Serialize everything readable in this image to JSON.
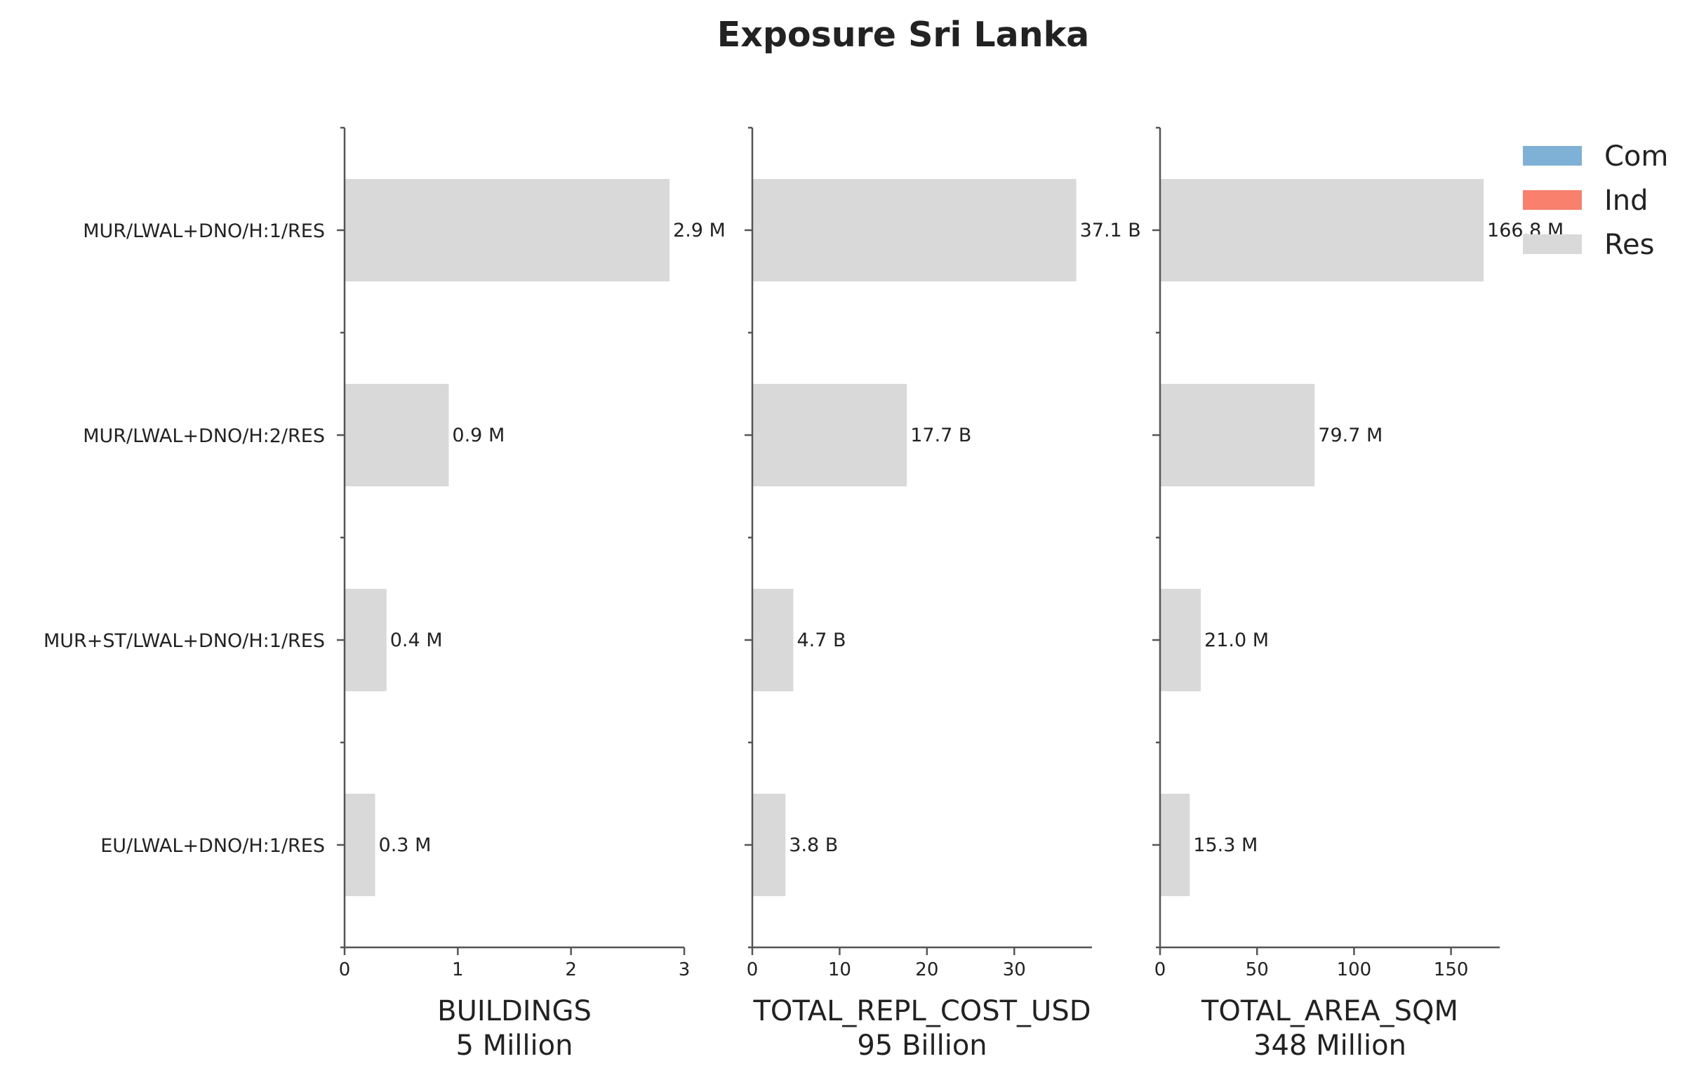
{
  "chart_data": {
    "type": "bar",
    "orientation": "horizontal",
    "title": "Exposure Sri Lanka",
    "categories": [
      "MUR/LWAL+DNO/H:1/RES",
      "MUR/LWAL+DNO/H:2/RES",
      "MUR+ST/LWAL+DNO/H:1/RES",
      "EU/LWAL+DNO/H:1/RES"
    ],
    "legend": {
      "placement": "top-right",
      "entries": [
        {
          "name": "Com",
          "color": "#7fb0d5"
        },
        {
          "name": "Ind",
          "color": "#f8806d"
        },
        {
          "name": "Res",
          "color": "#d9d9d9"
        }
      ]
    },
    "panels": [
      {
        "xlabel": "BUILDINGS",
        "total_label": "5 Million",
        "unit": "Million",
        "xlim": [
          0,
          3.0
        ],
        "xticks": [
          0,
          1,
          2,
          3
        ],
        "series": [
          {
            "name": "Res",
            "values": [
              2.87,
              0.92,
              0.37,
              0.27
            ]
          }
        ],
        "bar_labels": [
          "2.9 M",
          "0.9 M",
          "0.4 M",
          "0.3 M"
        ]
      },
      {
        "xlabel": "TOTAL_REPL_COST_USD",
        "total_label": "95 Billion",
        "unit": "Billion",
        "xlim": [
          0,
          38.9
        ],
        "xticks": [
          0,
          10,
          20,
          30
        ],
        "series": [
          {
            "name": "Res",
            "values": [
              37.1,
              17.7,
              4.7,
              3.8
            ]
          }
        ],
        "bar_labels": [
          "37.1 B",
          "17.7 B",
          "4.7 B",
          "3.8 B"
        ]
      },
      {
        "xlabel": "TOTAL_AREA_SQM",
        "total_label": "348 Million",
        "unit": "Million",
        "xlim": [
          0,
          175.1
        ],
        "xticks": [
          0,
          50,
          100,
          150
        ],
        "series": [
          {
            "name": "Res",
            "values": [
              166.8,
              79.7,
              21.0,
              15.3
            ]
          }
        ],
        "bar_labels": [
          "166.8 M",
          "79.7 M",
          "21.0 M",
          "15.3 M"
        ]
      }
    ],
    "grid": false
  }
}
